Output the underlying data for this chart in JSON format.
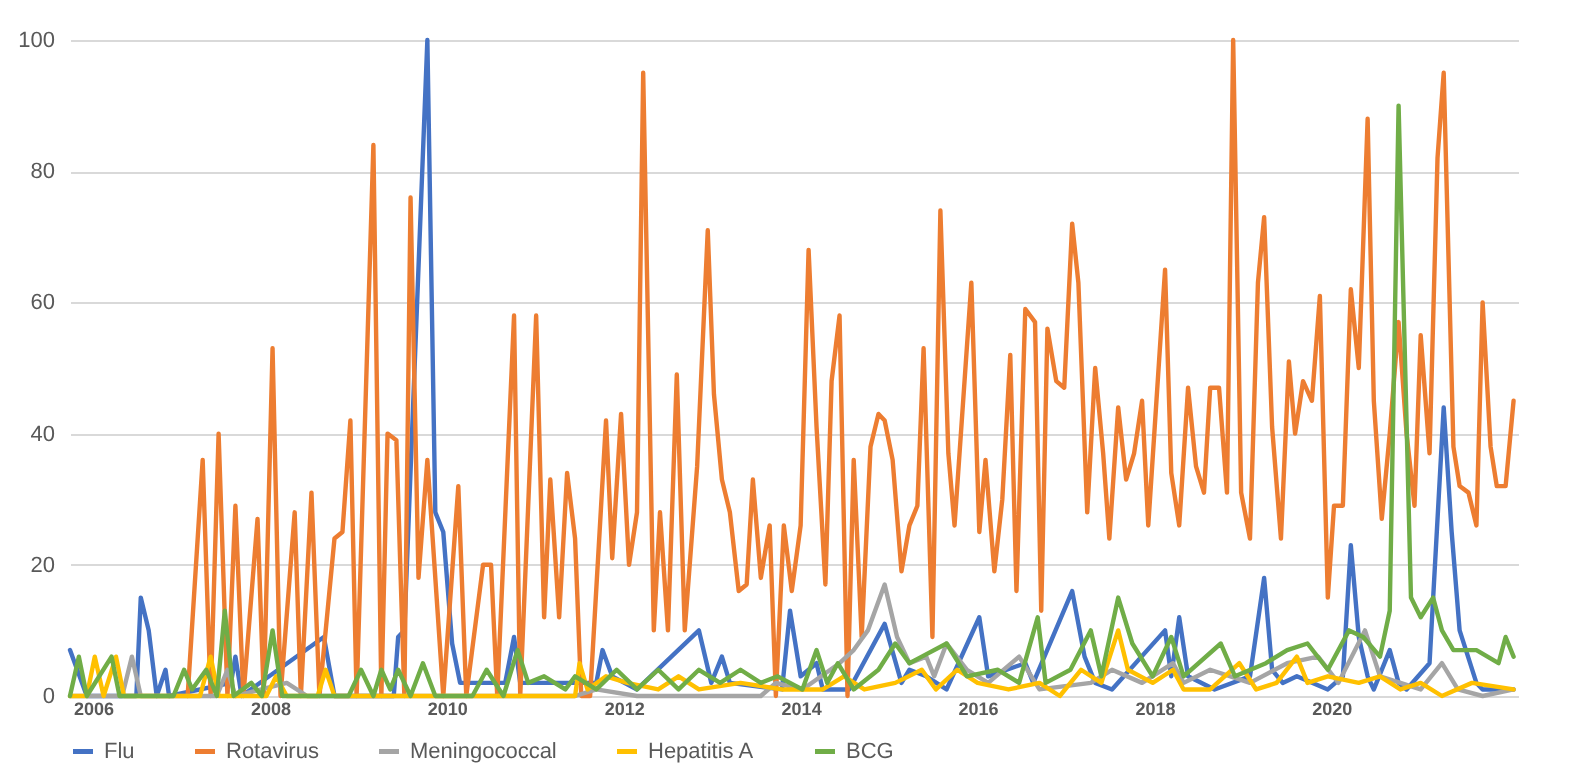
{
  "chart_data": {
    "type": "line",
    "xlim": [
      2005.74,
      2022.11
    ],
    "xticks": [
      2006,
      2008,
      2010,
      2012,
      2014,
      2016,
      2018,
      2020
    ],
    "ylim": [
      0,
      100
    ],
    "yticks": [
      0,
      20,
      40,
      60,
      80,
      100
    ],
    "grid": "y",
    "legend": "bottom",
    "marker": "none",
    "line_style": "solid",
    "series": [
      {
        "name": "Flu",
        "color": "#4472c4",
        "x": [
          2005.74,
          2005.93,
          2006.49,
          2006.54,
          2006.63,
          2006.72,
          2006.82,
          2006.86,
          2007.56,
          2007.61,
          2007.68,
          2008.61,
          2008.73,
          2009.4,
          2009.45,
          2009.52,
          2009.78,
          2009.87,
          2009.96,
          2010.06,
          2010.15,
          2010.45,
          2010.66,
          2010.76,
          2010.83,
          2011.69,
          2011.76,
          2011.87,
          2012.15,
          2012.85,
          2012.99,
          2013.11,
          2013.2,
          2013.79,
          2013.88,
          2014.0,
          2014.18,
          2014.25,
          2014.55,
          2014.95,
          2015.14,
          2015.23,
          2015.42,
          2015.65,
          2016.02,
          2016.12,
          2016.54,
          2016.63,
          2017.07,
          2017.21,
          2017.33,
          2017.52,
          2018.12,
          2018.19,
          2018.28,
          2018.38,
          2018.68,
          2019.08,
          2019.24,
          2019.33,
          2019.45,
          2019.61,
          2019.96,
          2020.13,
          2020.22,
          2020.31,
          2020.41,
          2020.48,
          2020.66,
          2020.76,
          2020.85,
          2021.11,
          2021.27,
          2021.36,
          2021.45,
          2021.64,
          2021.71,
          2022.06
        ],
        "values": [
          7,
          0,
          0,
          15,
          10,
          0,
          4,
          0,
          2,
          6,
          0,
          9,
          0,
          0,
          9,
          10,
          100,
          28,
          25,
          8,
          2,
          2,
          2,
          9,
          2,
          2,
          7,
          3,
          1,
          10,
          2,
          6,
          2,
          1,
          13,
          3,
          5,
          1,
          1,
          11,
          2,
          4,
          3,
          1,
          12,
          3,
          5,
          2,
          16,
          6,
          2,
          1,
          10,
          3,
          12,
          3,
          1,
          3,
          18,
          4,
          2,
          3,
          1,
          3,
          23,
          9,
          3,
          1,
          7,
          2,
          1,
          5,
          44,
          25,
          10,
          2,
          1,
          1
        ]
      },
      {
        "name": "Rotavirus",
        "color": "#ed7d31",
        "x": [
          2007.07,
          2007.24,
          2007.33,
          2007.42,
          2007.52,
          2007.61,
          2007.7,
          2007.86,
          2007.93,
          2008.03,
          2008.12,
          2008.28,
          2008.35,
          2008.47,
          2008.56,
          2008.73,
          2008.82,
          2008.91,
          2008.98,
          2009.17,
          2009.26,
          2009.33,
          2009.43,
          2009.52,
          2009.59,
          2009.68,
          2009.78,
          2009.96,
          2010.13,
          2010.22,
          2010.41,
          2010.5,
          2010.57,
          2010.76,
          2010.83,
          2011.01,
          2011.1,
          2011.17,
          2011.27,
          2011.36,
          2011.45,
          2011.52,
          2011.62,
          2011.8,
          2011.87,
          2011.97,
          2012.06,
          2012.15,
          2012.22,
          2012.34,
          2012.41,
          2012.5,
          2012.6,
          2012.69,
          2012.83,
          2012.95,
          2013.02,
          2013.11,
          2013.2,
          2013.3,
          2013.39,
          2013.46,
          2013.55,
          2013.65,
          2013.72,
          2013.81,
          2013.9,
          2014.0,
          2014.09,
          2014.18,
          2014.28,
          2014.35,
          2014.44,
          2014.53,
          2014.6,
          2014.69,
          2014.79,
          2014.88,
          2014.95,
          2015.04,
          2015.14,
          2015.23,
          2015.32,
          2015.39,
          2015.49,
          2015.58,
          2015.67,
          2015.74,
          2015.93,
          2016.02,
          2016.09,
          2016.19,
          2016.28,
          2016.37,
          2016.44,
          2016.54,
          2016.65,
          2016.72,
          2016.79,
          2016.89,
          2016.98,
          2017.07,
          2017.14,
          2017.24,
          2017.33,
          2017.42,
          2017.49,
          2017.59,
          2017.68,
          2017.77,
          2017.86,
          2017.93,
          2018.12,
          2018.19,
          2018.28,
          2018.38,
          2018.47,
          2018.56,
          2018.63,
          2018.73,
          2018.82,
          2018.89,
          2018.98,
          2019.08,
          2019.17,
          2019.24,
          2019.33,
          2019.43,
          2019.52,
          2019.59,
          2019.68,
          2019.78,
          2019.87,
          2019.96,
          2020.03,
          2020.13,
          2020.22,
          2020.31,
          2020.41,
          2020.48,
          2020.57,
          2020.66,
          2020.76,
          2020.85,
          2020.94,
          2021.01,
          2021.11,
          2021.2,
          2021.27,
          2021.38,
          2021.45,
          2021.55,
          2021.64,
          2021.71,
          2021.8,
          2021.87,
          2021.97,
          2022.06
        ],
        "values": [
          0,
          36,
          0,
          40,
          0,
          29,
          0,
          27,
          0,
          53,
          0,
          28,
          0,
          31,
          0,
          24,
          25,
          42,
          0,
          84,
          0,
          40,
          39,
          0,
          76,
          18,
          36,
          0,
          32,
          0,
          20,
          20,
          0,
          58,
          0,
          58,
          12,
          33,
          12,
          34,
          24,
          0,
          0,
          42,
          21,
          43,
          20,
          28,
          95,
          10,
          28,
          10,
          49,
          10,
          35,
          71,
          46,
          33,
          28,
          16,
          17,
          33,
          18,
          26,
          0,
          26,
          16,
          26,
          68,
          41,
          17,
          48,
          58,
          0,
          36,
          9,
          38,
          43,
          42,
          36,
          19,
          26,
          29,
          53,
          9,
          74,
          37,
          26,
          63,
          25,
          36,
          19,
          30,
          52,
          16,
          59,
          57,
          13,
          56,
          48,
          47,
          72,
          63,
          28,
          50,
          37,
          24,
          44,
          33,
          37,
          45,
          26,
          65,
          34,
          26,
          47,
          35,
          31,
          47,
          47,
          31,
          100,
          31,
          24,
          63,
          73,
          41,
          24,
          51,
          40,
          48,
          45,
          61,
          15,
          29,
          29,
          62,
          50,
          88,
          45,
          27,
          40,
          57,
          40,
          29,
          55,
          37,
          82,
          95,
          38,
          32,
          31,
          26,
          60,
          38,
          32,
          32,
          45
        ]
      },
      {
        "name": "Meningococcal",
        "color": "#a5a5a5",
        "x": [
          2005.74,
          2006.33,
          2006.44,
          2006.54,
          2007.4,
          2007.52,
          2007.61,
          2008.19,
          2008.42,
          2011.45,
          2011.69,
          2012.15,
          2013.55,
          2013.72,
          2014.02,
          2014.44,
          2014.6,
          2014.76,
          2014.95,
          2015.09,
          2015.23,
          2015.42,
          2015.51,
          2015.65,
          2015.88,
          2016.12,
          2016.47,
          2016.7,
          2017.28,
          2017.52,
          2017.86,
          2018.21,
          2018.33,
          2018.63,
          2019.08,
          2019.5,
          2019.85,
          2020.08,
          2020.38,
          2020.55,
          2020.78,
          2021.01,
          2021.25,
          2021.43,
          2021.71,
          2022.06
        ],
        "values": [
          0,
          0,
          6,
          0,
          0,
          4,
          0,
          2,
          0,
          0,
          1,
          0,
          0,
          2,
          1,
          5,
          7,
          10,
          17,
          9,
          5,
          6,
          3,
          8,
          4,
          2,
          6,
          1,
          2,
          4,
          2,
          5,
          2,
          4,
          2,
          5,
          6,
          2,
          10,
          3,
          2,
          1,
          5,
          1,
          0,
          1
        ]
      },
      {
        "name": "Hepatitis A",
        "color": "#ffc000",
        "x": [
          2005.74,
          2005.93,
          2006.02,
          2006.12,
          2006.26,
          2006.35,
          2007.21,
          2007.33,
          2007.42,
          2007.96,
          2008.07,
          2008.19,
          2008.54,
          2008.63,
          2008.73,
          2011.45,
          2011.5,
          2011.59,
          2011.8,
          2012.04,
          2012.39,
          2012.62,
          2012.85,
          2013.32,
          2013.79,
          2014.25,
          2014.49,
          2014.72,
          2015.07,
          2015.37,
          2015.53,
          2015.77,
          2016.0,
          2016.35,
          2016.7,
          2016.93,
          2017.17,
          2017.4,
          2017.59,
          2017.7,
          2017.98,
          2018.21,
          2018.33,
          2018.63,
          2018.96,
          2019.15,
          2019.38,
          2019.61,
          2019.73,
          2019.96,
          2020.31,
          2020.55,
          2020.78,
          2021.01,
          2021.25,
          2021.59,
          2022.06
        ],
        "values": [
          0,
          0,
          6,
          0,
          6,
          0,
          0,
          6,
          0,
          0,
          3,
          0,
          0,
          4,
          0,
          0,
          5,
          1,
          3,
          2,
          1,
          3,
          1,
          2,
          1,
          1,
          3,
          1,
          2,
          4,
          1,
          4,
          2,
          1,
          2,
          0,
          4,
          2,
          10,
          4,
          2,
          4,
          1,
          1,
          5,
          1,
          2,
          6,
          2,
          3,
          2,
          3,
          1,
          2,
          0,
          2,
          1
        ]
      },
      {
        "name": "BCG",
        "color": "#70ad47",
        "x": [
          2005.74,
          2005.84,
          2005.93,
          2006.21,
          2006.3,
          2006.91,
          2007.03,
          2007.12,
          2007.28,
          2007.4,
          2007.49,
          2007.59,
          2007.79,
          2007.91,
          2008.03,
          2008.14,
          2008.89,
          2009.03,
          2009.17,
          2009.26,
          2009.36,
          2009.45,
          2009.59,
          2009.73,
          2009.87,
          2010.29,
          2010.45,
          2010.64,
          2010.8,
          2010.92,
          2011.1,
          2011.34,
          2011.45,
          2011.69,
          2011.92,
          2012.15,
          2012.39,
          2012.62,
          2012.85,
          2013.09,
          2013.32,
          2013.55,
          2013.74,
          2014.02,
          2014.18,
          2014.3,
          2014.42,
          2014.6,
          2014.88,
          2015.07,
          2015.23,
          2015.37,
          2015.65,
          2015.88,
          2016.23,
          2016.47,
          2016.68,
          2016.77,
          2017.05,
          2017.28,
          2017.4,
          2017.59,
          2017.75,
          2017.98,
          2018.19,
          2018.33,
          2018.75,
          2018.91,
          2019.26,
          2019.5,
          2019.73,
          2019.96,
          2020.2,
          2020.36,
          2020.55,
          2020.66,
          2020.76,
          2020.9,
          2021.01,
          2021.15,
          2021.25,
          2021.38,
          2021.64,
          2021.89,
          2021.97,
          2022.06
        ],
        "values": [
          0,
          6,
          0,
          6,
          0,
          0,
          4,
          1,
          4,
          0,
          13,
          0,
          2,
          0,
          10,
          0,
          0,
          4,
          0,
          4,
          1,
          4,
          0,
          5,
          0,
          0,
          4,
          0,
          7,
          2,
          3,
          1,
          3,
          1,
          4,
          1,
          4,
          1,
          4,
          2,
          4,
          2,
          3,
          1,
          7,
          2,
          5,
          1,
          4,
          8,
          5,
          6,
          8,
          3,
          4,
          2,
          12,
          2,
          4,
          10,
          3,
          15,
          8,
          3,
          9,
          3,
          8,
          3,
          5,
          7,
          8,
          4,
          10,
          9,
          6,
          13,
          90,
          15,
          12,
          15,
          10,
          7,
          7,
          5,
          9,
          6
        ]
      }
    ]
  }
}
